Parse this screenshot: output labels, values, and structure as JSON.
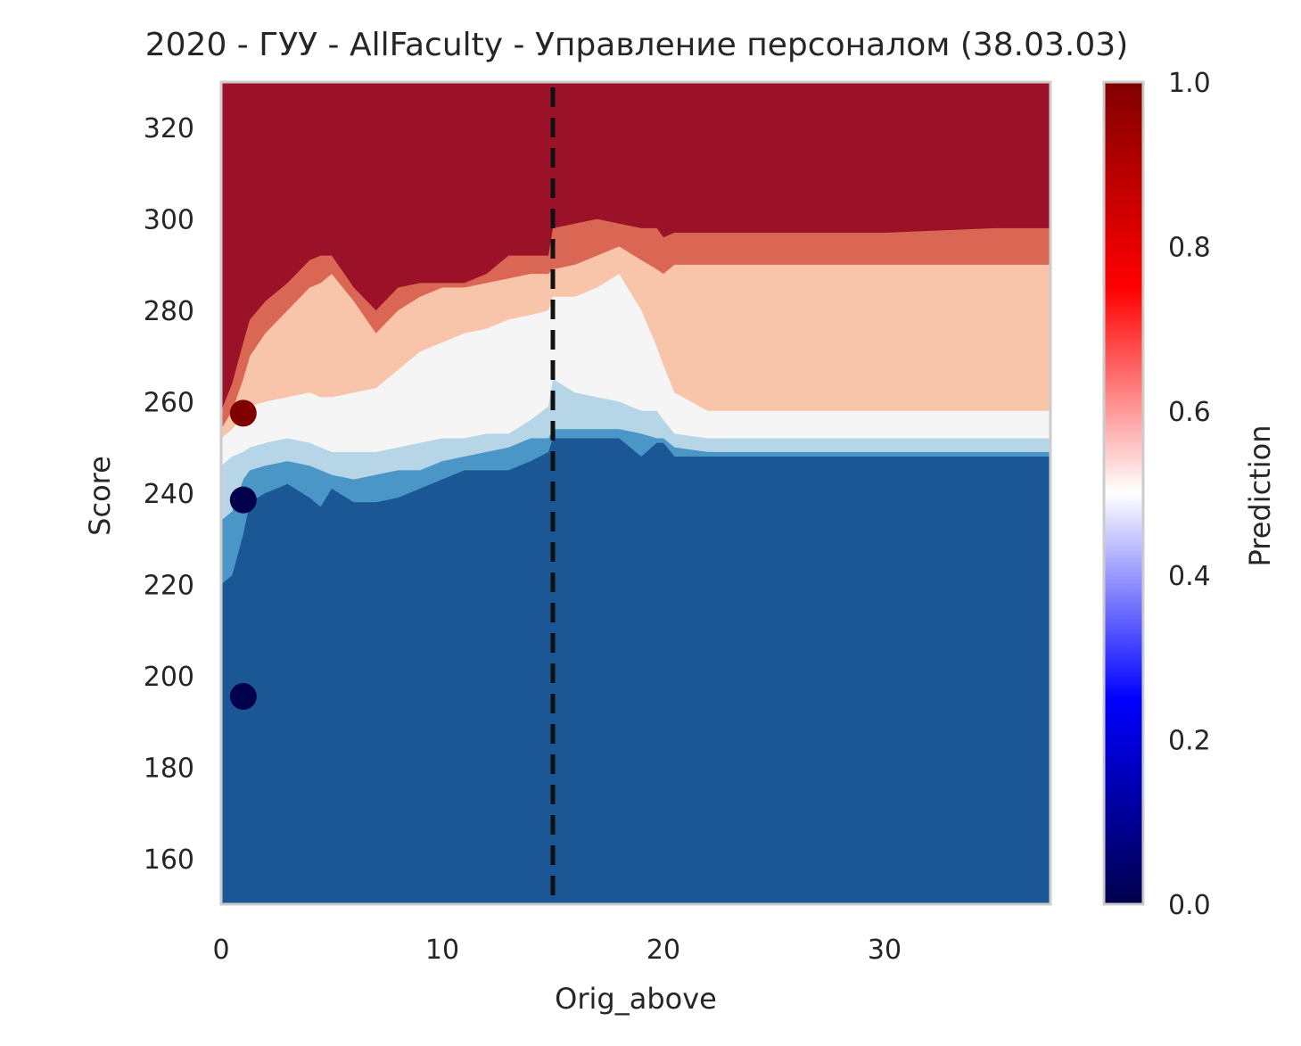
{
  "chart_data": {
    "type": "heatmap",
    "title": "2020 - ГУУ - AllFaculty - Управление персоналом (38.03.03)",
    "xlabel": "Orig_above",
    "ylabel": "Score",
    "xlim": [
      0,
      37.5
    ],
    "ylim": [
      150,
      330
    ],
    "x_ticks": [
      0,
      10,
      20,
      30
    ],
    "y_ticks": [
      160,
      180,
      200,
      220,
      240,
      260,
      280,
      300,
      320
    ],
    "grid": false,
    "colorbar": {
      "label": "Prediction",
      "range": [
        0,
        1
      ],
      "ticks": [
        "0.0",
        "0.2",
        "0.4",
        "0.6",
        "0.8",
        "1.0"
      ],
      "colormap": "seismic",
      "stops": [
        "#00004c",
        "#0000ff",
        "#ffffff",
        "#ff0000",
        "#800000"
      ]
    },
    "contour_levels": [
      {
        "range": "0.0-0.2",
        "color": "#1b5794"
      },
      {
        "range": "0.2-0.3",
        "color": "#4a97c7"
      },
      {
        "range": "0.3-0.45",
        "color": "#b6d6e8"
      },
      {
        "range": "0.45-0.55",
        "color": "#f5f5f5"
      },
      {
        "range": "0.55-0.7",
        "color": "#f8c4aa"
      },
      {
        "range": "0.7-0.85",
        "color": "#da6753"
      },
      {
        "range": "0.85-1.0",
        "color": "#9b1228"
      }
    ],
    "contour_boundaries_y": {
      "x": [
        0,
        0.5,
        1,
        1.3,
        2,
        3,
        4,
        4.5,
        5,
        6,
        7,
        8,
        9,
        10,
        11,
        12,
        13,
        14,
        14.8,
        15,
        16,
        17,
        18,
        19,
        19.7,
        20,
        20.5,
        22,
        25,
        28,
        30,
        35,
        37.5
      ],
      "level_0_2": [
        220,
        222,
        231,
        238,
        240,
        242,
        239,
        237,
        241,
        238,
        238,
        239,
        241,
        243,
        245,
        245,
        245,
        247,
        249,
        252,
        252,
        252,
        252,
        248,
        251,
        251,
        248,
        248,
        248,
        248,
        248,
        248,
        248
      ],
      "level_0_3": [
        234,
        236,
        243,
        245,
        246,
        247,
        246,
        245,
        244,
        243,
        244,
        245,
        245,
        247,
        248,
        249,
        250,
        252,
        252,
        254,
        254,
        254,
        254,
        253,
        252,
        252,
        250,
        249,
        249,
        249,
        249,
        249,
        249
      ],
      "level_0_45": [
        246,
        248,
        249,
        250,
        251,
        252,
        251,
        250,
        249,
        249,
        249,
        250,
        251,
        252,
        252,
        253,
        253,
        256,
        259,
        265,
        262,
        261,
        260,
        258,
        258,
        256,
        253,
        252,
        252,
        252,
        252,
        252,
        252
      ],
      "level_0_55": [
        252,
        254,
        257,
        259,
        260,
        261,
        262,
        261,
        261,
        262,
        263,
        267,
        271,
        273,
        275,
        276,
        278,
        279,
        280,
        283,
        283,
        285,
        288,
        280,
        272,
        268,
        262,
        258,
        258,
        258,
        258,
        258,
        258
      ],
      "level_0_7": [
        254,
        258,
        265,
        270,
        275,
        280,
        285,
        286,
        288,
        282,
        275,
        280,
        283,
        285,
        285,
        286,
        287,
        288,
        288,
        289,
        290,
        292,
        294,
        291,
        289,
        288,
        290,
        290,
        290,
        290,
        290,
        290,
        290
      ],
      "level_0_85": [
        258,
        264,
        273,
        278,
        282,
        286,
        291,
        292,
        292,
        285,
        280,
        285,
        286,
        286,
        286,
        288,
        292,
        292,
        292,
        298,
        299,
        300,
        299,
        298,
        298,
        296,
        297,
        297,
        297,
        297,
        297,
        298,
        298
      ]
    },
    "threshold_line": {
      "x": 15,
      "style": "dashed",
      "color": "#111111"
    },
    "points": [
      {
        "x": 1,
        "y": 257.5,
        "value": 1.0
      },
      {
        "x": 1,
        "y": 238.5,
        "value": 0.0
      },
      {
        "x": 1,
        "y": 195.5,
        "value": 0.0
      }
    ]
  }
}
